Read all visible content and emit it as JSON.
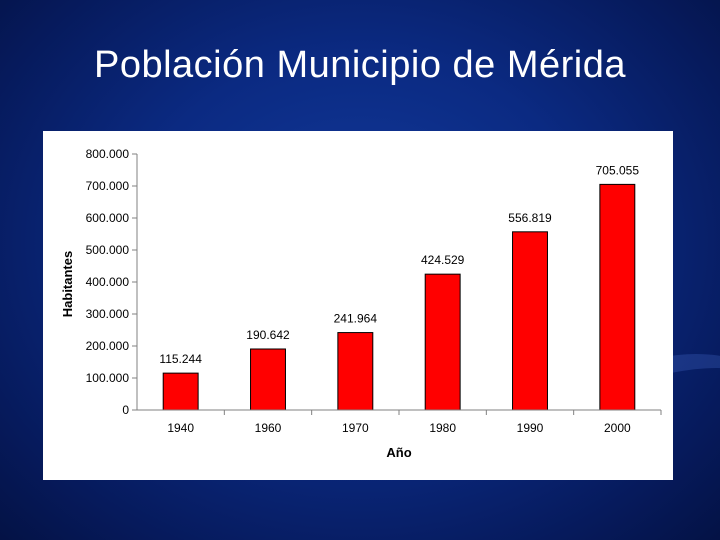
{
  "slide": {
    "title": "Población Municipio de Mérida"
  },
  "chart_data": {
    "type": "bar",
    "categories": [
      "1940",
      "1960",
      "1970",
      "1980",
      "1990",
      "2000"
    ],
    "values": [
      115244,
      190642,
      241964,
      424529,
      556819,
      705055
    ],
    "value_labels": [
      "115.244",
      "190.642",
      "241.964",
      "424.529",
      "556.819",
      "705.055"
    ],
    "xlabel": "Año",
    "ylabel": "Habitantes",
    "ylim": [
      0,
      800000
    ],
    "yticks": [
      0,
      100000,
      200000,
      300000,
      400000,
      500000,
      600000,
      700000,
      800000
    ],
    "ytick_labels": [
      "0",
      "100.000",
      "200.000",
      "300.000",
      "400.000",
      "500.000",
      "600.000",
      "700.000",
      "800.000"
    ],
    "bar_color": "#ff0000",
    "grid": false,
    "legend": "none"
  }
}
